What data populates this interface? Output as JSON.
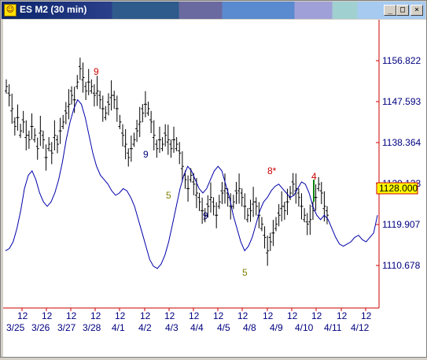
{
  "window": {
    "title": "ES M2 (30 min)",
    "icon": "chart-app-icon",
    "min_label": "_",
    "max_label": "□",
    "close_label": "×"
  },
  "colors": {
    "bars": "#000000",
    "oscillator": "#0000aa",
    "axis": "#cc0000",
    "axis_text": "#000080",
    "label_red": "#cc0000",
    "label_navy": "#000080",
    "label_olive": "#808000",
    "last_price_bg": "#ffff00"
  },
  "chart_data": {
    "type": "ohlc-bar",
    "y_ticks": [
      "1156.822",
      "1147.593",
      "1138.364",
      "1129.133",
      "1119.907",
      "1110.678"
    ],
    "y_tick_values": [
      1156.822,
      1147.593,
      1138.364,
      1129.133,
      1119.907,
      1110.678
    ],
    "last_price": "1128.000",
    "last_price_value": 1128.0,
    "x_time_labels": [
      "12",
      "12",
      "12",
      "12",
      "12",
      "12",
      "12",
      "12",
      "12",
      "12",
      "12",
      "12",
      "12",
      "12",
      "12",
      "12"
    ],
    "x_date_labels": [
      "3/25",
      "3/26",
      "3/27",
      "3/28",
      "4/1",
      "4/2",
      "4/3",
      "4/4",
      "4/5",
      "4/8",
      "4/9",
      "4/10",
      "4/11",
      "4/12"
    ],
    "price_bars": [
      1151,
      1149,
      1146,
      1142,
      1144,
      1141,
      1143,
      1140,
      1139,
      1142,
      1140,
      1137,
      1141,
      1139,
      1135,
      1138,
      1136,
      1140,
      1138,
      1141,
      1143,
      1145,
      1147,
      1149,
      1148,
      1152,
      1155,
      1153,
      1150,
      1152,
      1151,
      1149,
      1150,
      1148,
      1146,
      1145,
      1147,
      1149,
      1148,
      1146,
      1143,
      1140,
      1138,
      1135,
      1137,
      1139,
      1141,
      1143,
      1145,
      1147,
      1146,
      1143,
      1140,
      1137,
      1139,
      1138,
      1140,
      1139,
      1137,
      1139,
      1138,
      1136,
      1133,
      1130,
      1128,
      1131,
      1129,
      1127,
      1125,
      1123,
      1122,
      1124,
      1126,
      1124,
      1122,
      1125,
      1127,
      1128,
      1126,
      1124,
      1125,
      1127,
      1128,
      1126,
      1124,
      1122,
      1123,
      1125,
      1124,
      1122,
      1120,
      1117,
      1114,
      1116,
      1118,
      1120,
      1122,
      1124,
      1123,
      1125,
      1127,
      1129,
      1128,
      1126,
      1124,
      1122,
      1120,
      1121,
      1123,
      1126,
      1129,
      1127,
      1124,
      1122
    ],
    "oscillator": [
      1114,
      1114.5,
      1116,
      1119,
      1123,
      1128,
      1131,
      1132,
      1130,
      1127,
      1125,
      1124,
      1125,
      1127,
      1130,
      1134,
      1139,
      1143,
      1146,
      1148,
      1147,
      1144,
      1140,
      1136,
      1133,
      1131,
      1130,
      1129,
      1127.5,
      1126.5,
      1127,
      1128,
      1127.5,
      1126,
      1124,
      1121,
      1118,
      1115,
      1112,
      1110.5,
      1110,
      1111,
      1113,
      1116,
      1120,
      1124,
      1128,
      1131,
      1133,
      1132,
      1130,
      1128,
      1127,
      1128,
      1130,
      1132,
      1133,
      1132,
      1129,
      1126,
      1122,
      1119,
      1116,
      1114,
      1115,
      1117,
      1120,
      1123,
      1125,
      1126,
      1127.5,
      1128.5,
      1129,
      1128,
      1127,
      1126,
      1126.5,
      1128,
      1129.5,
      1129,
      1127,
      1124,
      1122,
      1121,
      1122,
      1121,
      1119,
      1117,
      1115.5,
      1115,
      1115.5,
      1116,
      1117,
      1117.5,
      1116.5,
      1116,
      1117,
      1118,
      1122
    ],
    "annotations": [
      {
        "text": "9",
        "color": "red"
      },
      {
        "text": "9",
        "color": "navy"
      },
      {
        "text": "5",
        "color": "olive"
      },
      {
        "text": "9",
        "color": "navy"
      },
      {
        "text": "5",
        "color": "olive"
      },
      {
        "text": "8*",
        "color": "red"
      },
      {
        "text": "4",
        "color": "red"
      }
    ]
  }
}
